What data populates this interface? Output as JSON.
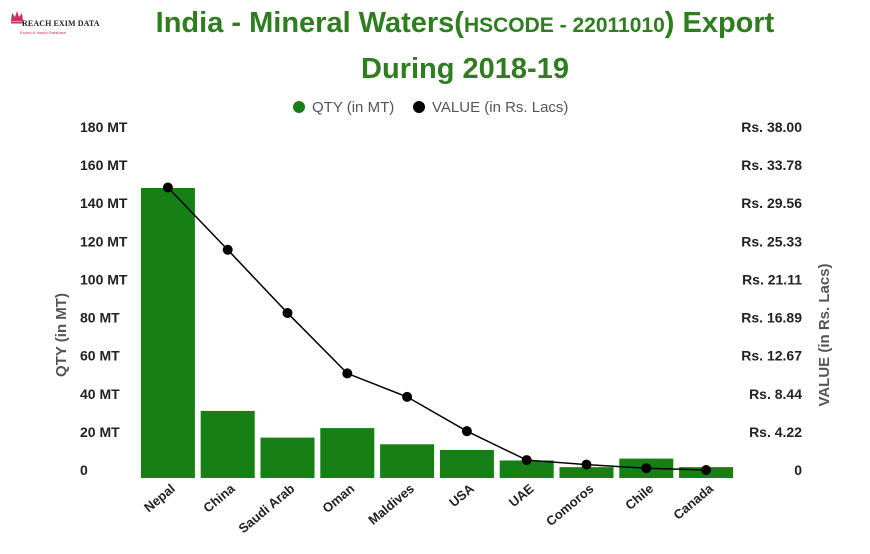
{
  "logo": {
    "name": "REACH EXIM DATA",
    "tagline": "Export & Import Database"
  },
  "title": {
    "part1": "India -  Mineral Waters(",
    "part2": "HSCODE - 22011010",
    "part3": ") Export",
    "line2": "During 2018-19"
  },
  "colors": {
    "bar": "#168016",
    "line": "#000000",
    "title": "#2e7d1f",
    "axis_text": "#222222",
    "axis_title": "#555555",
    "legend_text": "#555555"
  },
  "chart_data": {
    "type": "bar",
    "categories": [
      "Nepal",
      "China",
      "Saudi Arab",
      "Oman",
      "Maldives",
      "USA",
      "UAE",
      "Comoros",
      "Chile",
      "Canada"
    ],
    "series": [
      {
        "name": "QTY (in MT)",
        "type": "bar",
        "axis": "left",
        "values": [
          148,
          31,
          17,
          22,
          13.5,
          10.5,
          5,
          1.5,
          6,
          1.5
        ]
      },
      {
        "name": "VALUE (in Rs. Lacs)",
        "type": "line",
        "axis": "right",
        "values": [
          31.3,
          24.4,
          17.4,
          10.7,
          8.1,
          4.3,
          1.1,
          0.6,
          0.2,
          0.0
        ]
      }
    ],
    "y_left": {
      "label": "QTY (in MT)",
      "ticks": [
        "0",
        "20 MT",
        "40 MT",
        "60 MT",
        "80 MT",
        "100 MT",
        "120 MT",
        "140 MT",
        "160 MT",
        "180 MT"
      ],
      "range": [
        0,
        180
      ]
    },
    "y_right": {
      "label": "VALUE (in Rs. Lacs)",
      "ticks": [
        "0",
        "Rs. 4.22",
        "Rs. 8.44",
        "Rs. 12.67",
        "Rs. 16.89",
        "Rs. 21.11",
        "Rs. 25.33",
        "Rs. 29.56",
        "Rs. 33.78",
        "Rs. 38.00"
      ],
      "range": [
        0,
        38
      ]
    },
    "legend_position": "top-center",
    "grid": false
  }
}
